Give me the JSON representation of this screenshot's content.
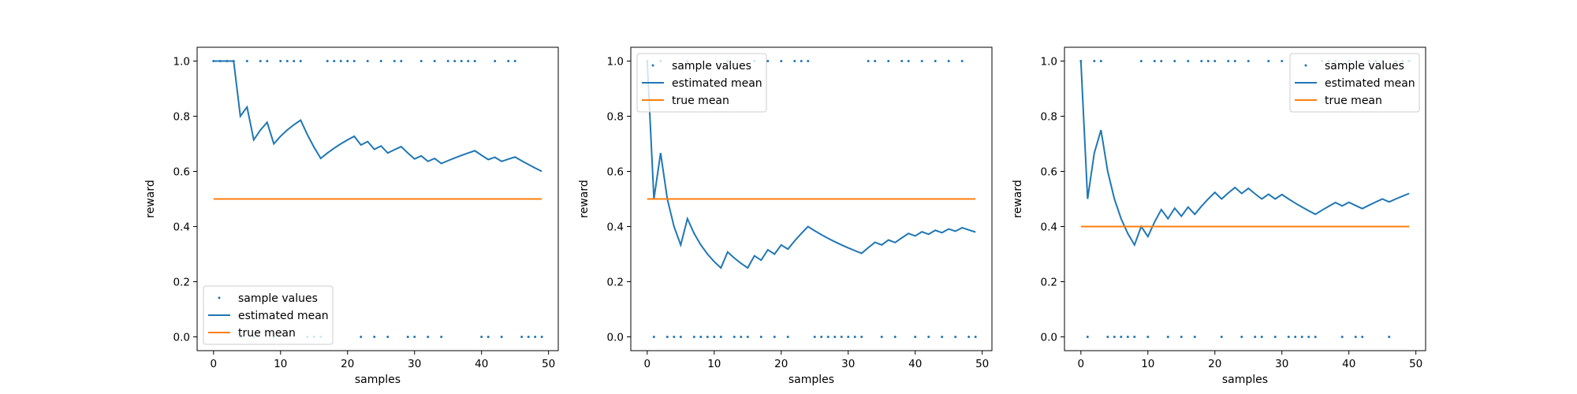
{
  "colors": {
    "samples": "#1f77b4",
    "estimated": "#1f77b4",
    "true_mean": "#ff7f0e"
  },
  "chart_data": [
    {
      "type": "line",
      "xlabel": "samples",
      "ylabel": "reward",
      "xlim": [
        -2.45,
        51.45
      ],
      "ylim": [
        -0.05,
        1.05
      ],
      "xticks": [
        0,
        10,
        20,
        30,
        40,
        50
      ],
      "yticks": [
        0.0,
        0.2,
        0.4,
        0.6,
        0.8,
        1.0
      ],
      "legend": {
        "placement": "lower-left",
        "entries": [
          "sample values",
          "estimated mean",
          "true mean"
        ]
      },
      "true_mean": 0.5,
      "samples": [
        1,
        1,
        1,
        1,
        0,
        1,
        0,
        1,
        1,
        0,
        1,
        1,
        1,
        1,
        0,
        0,
        0,
        1,
        1,
        1,
        1,
        1,
        0,
        1,
        0,
        1,
        0,
        1,
        1,
        0,
        0,
        1,
        0,
        1,
        0,
        1,
        1,
        1,
        1,
        1,
        0,
        0,
        1,
        0,
        1,
        1,
        0,
        0,
        0,
        0
      ],
      "series": [
        {
          "name": "sample values",
          "kind": "scatter"
        },
        {
          "name": "estimated mean",
          "kind": "line"
        },
        {
          "name": "true mean",
          "kind": "line"
        }
      ]
    },
    {
      "type": "line",
      "xlabel": "samples",
      "ylabel": "reward",
      "xlim": [
        -2.45,
        51.45
      ],
      "ylim": [
        -0.05,
        1.05
      ],
      "xticks": [
        0,
        10,
        20,
        30,
        40,
        50
      ],
      "yticks": [
        0.0,
        0.2,
        0.4,
        0.6,
        0.8,
        1.0
      ],
      "legend": {
        "placement": "upper-left",
        "entries": [
          "sample values",
          "estimated mean",
          "true mean"
        ]
      },
      "true_mean": 0.5,
      "samples": [
        1,
        0,
        1,
        0,
        0,
        0,
        1,
        0,
        0,
        0,
        0,
        0,
        1,
        0,
        0,
        0,
        1,
        0,
        1,
        0,
        1,
        0,
        1,
        1,
        1,
        0,
        0,
        0,
        0,
        0,
        0,
        0,
        0,
        1,
        1,
        0,
        1,
        0,
        1,
        1,
        0,
        1,
        0,
        1,
        0,
        1,
        0,
        1,
        0,
        0
      ],
      "series": [
        {
          "name": "sample values",
          "kind": "scatter"
        },
        {
          "name": "estimated mean",
          "kind": "line"
        },
        {
          "name": "true mean",
          "kind": "line"
        }
      ]
    },
    {
      "type": "line",
      "xlabel": "samples",
      "ylabel": "reward",
      "xlim": [
        -2.45,
        51.45
      ],
      "ylim": [
        -0.05,
        1.05
      ],
      "xticks": [
        0,
        10,
        20,
        30,
        40,
        50
      ],
      "yticks": [
        0.0,
        0.2,
        0.4,
        0.6,
        0.8,
        1.0
      ],
      "legend": {
        "placement": "upper-right",
        "entries": [
          "sample values",
          "estimated mean",
          "true mean"
        ]
      },
      "true_mean": 0.4,
      "samples": [
        1,
        0,
        1,
        1,
        0,
        0,
        0,
        0,
        0,
        1,
        0,
        1,
        1,
        0,
        1,
        0,
        1,
        0,
        1,
        1,
        1,
        0,
        1,
        1,
        0,
        1,
        0,
        0,
        1,
        0,
        1,
        0,
        0,
        0,
        0,
        0,
        1,
        1,
        1,
        0,
        1,
        0,
        0,
        1,
        1,
        1,
        0,
        1,
        1,
        1
      ],
      "series": [
        {
          "name": "sample values",
          "kind": "scatter"
        },
        {
          "name": "estimated mean",
          "kind": "line"
        },
        {
          "name": "true mean",
          "kind": "line"
        }
      ]
    }
  ]
}
